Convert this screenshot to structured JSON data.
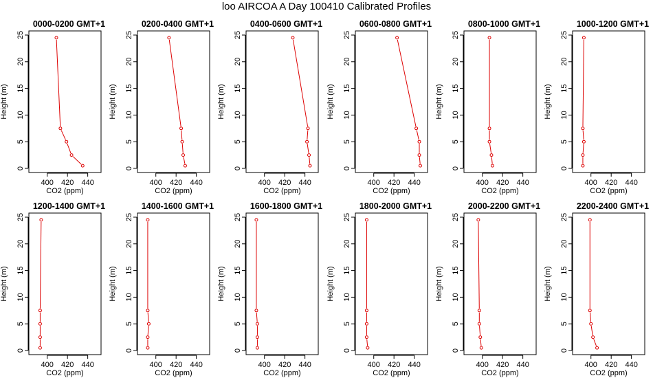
{
  "page_title": "loo AIRCOA A  Day 100410  Calibrated Profiles",
  "colors": {
    "series": "#dd0000",
    "axis": "#000000",
    "background": "#ffffff"
  },
  "chart_data": [
    {
      "type": "line",
      "title": "0000-0200 GMT+1",
      "xlabel": "CO2 (ppm)",
      "ylabel": "Height (m)",
      "xlim": [
        390,
        445
      ],
      "ylim": [
        0,
        25
      ],
      "xticks": [
        400,
        420,
        440
      ],
      "yticks": [
        0,
        5,
        10,
        15,
        20,
        25
      ],
      "series": [
        {
          "x": [
            435,
            424,
            419,
            413,
            409
          ],
          "y": [
            0.5,
            2.5,
            5,
            7.5,
            24.5
          ]
        }
      ]
    },
    {
      "type": "line",
      "title": "0200-0400 GMT+1",
      "xlabel": "CO2 (ppm)",
      "ylabel": "Height (m)",
      "xlim": [
        390,
        445
      ],
      "ylim": [
        0,
        25
      ],
      "xticks": [
        400,
        420,
        440
      ],
      "yticks": [
        0,
        5,
        10,
        15,
        20,
        25
      ],
      "series": [
        {
          "x": [
            429,
            427,
            426,
            425,
            413
          ],
          "y": [
            0.5,
            2.5,
            5,
            7.5,
            24.5
          ]
        }
      ]
    },
    {
      "type": "line",
      "title": "0400-0600 GMT+1",
      "xlabel": "CO2 (ppm)",
      "ylabel": "Height (m)",
      "xlim": [
        390,
        445
      ],
      "ylim": [
        0,
        25
      ],
      "xticks": [
        400,
        420,
        440
      ],
      "yticks": [
        0,
        5,
        10,
        15,
        20,
        25
      ],
      "series": [
        {
          "x": [
            445,
            444,
            442,
            443,
            428
          ],
          "y": [
            0.5,
            2.5,
            5,
            7.5,
            24.5
          ]
        }
      ]
    },
    {
      "type": "line",
      "title": "0600-0800 GMT+1",
      "xlabel": "CO2 (ppm)",
      "ylabel": "Height (m)",
      "xlim": [
        390,
        445
      ],
      "ylim": [
        0,
        25
      ],
      "xticks": [
        400,
        420,
        440
      ],
      "yticks": [
        0,
        5,
        10,
        15,
        20,
        25
      ],
      "series": [
        {
          "x": [
            446,
            445,
            445,
            442,
            423
          ],
          "y": [
            0.5,
            2.5,
            5,
            7.5,
            24.5
          ]
        }
      ]
    },
    {
      "type": "line",
      "title": "0800-1000 GMT+1",
      "xlabel": "CO2 (ppm)",
      "ylabel": "Height (m)",
      "xlim": [
        390,
        445
      ],
      "ylim": [
        0,
        25
      ],
      "xticks": [
        400,
        420,
        440
      ],
      "yticks": [
        0,
        5,
        10,
        15,
        20,
        25
      ],
      "series": [
        {
          "x": [
            410,
            409,
            407,
            407,
            407
          ],
          "y": [
            0.5,
            2.5,
            5,
            7.5,
            24.5
          ]
        }
      ]
    },
    {
      "type": "line",
      "title": "1000-1200 GMT+1",
      "xlabel": "CO2 (ppm)",
      "ylabel": "Height (m)",
      "xlim": [
        390,
        445
      ],
      "ylim": [
        0,
        25
      ],
      "xticks": [
        400,
        420,
        440
      ],
      "yticks": [
        0,
        5,
        10,
        15,
        20,
        25
      ],
      "series": [
        {
          "x": [
            392,
            392,
            393,
            392,
            393
          ],
          "y": [
            0.5,
            2.5,
            5,
            7.5,
            24.5
          ]
        }
      ]
    },
    {
      "type": "line",
      "title": "1200-1400 GMT+1",
      "xlabel": "CO2 (ppm)",
      "ylabel": "Height (m)",
      "xlim": [
        390,
        445
      ],
      "ylim": [
        0,
        25
      ],
      "xticks": [
        400,
        420,
        440
      ],
      "yticks": [
        0,
        5,
        10,
        15,
        20,
        25
      ],
      "series": [
        {
          "x": [
            393,
            393,
            393,
            393,
            394
          ],
          "y": [
            0.5,
            2.5,
            5,
            7.5,
            24.5
          ]
        }
      ]
    },
    {
      "type": "line",
      "title": "1400-1600 GMT+1",
      "xlabel": "CO2 (ppm)",
      "ylabel": "Height (m)",
      "xlim": [
        390,
        445
      ],
      "ylim": [
        0,
        25
      ],
      "xticks": [
        400,
        420,
        440
      ],
      "yticks": [
        0,
        5,
        10,
        15,
        20,
        25
      ],
      "series": [
        {
          "x": [
            392,
            392,
            393,
            392,
            392
          ],
          "y": [
            0.5,
            2.5,
            5,
            7.5,
            24.5
          ]
        }
      ]
    },
    {
      "type": "line",
      "title": "1600-1800 GMT+1",
      "xlabel": "CO2 (ppm)",
      "ylabel": "Height (m)",
      "xlim": [
        390,
        445
      ],
      "ylim": [
        0,
        25
      ],
      "xticks": [
        400,
        420,
        440
      ],
      "yticks": [
        0,
        5,
        10,
        15,
        20,
        25
      ],
      "series": [
        {
          "x": [
            393,
            393,
            393,
            392,
            392
          ],
          "y": [
            0.5,
            2.5,
            5,
            7.5,
            24.5
          ]
        }
      ]
    },
    {
      "type": "line",
      "title": "1800-2000 GMT+1",
      "xlabel": "CO2 (ppm)",
      "ylabel": "Height (m)",
      "xlim": [
        390,
        445
      ],
      "ylim": [
        0,
        25
      ],
      "xticks": [
        400,
        420,
        440
      ],
      "yticks": [
        0,
        5,
        10,
        15,
        20,
        25
      ],
      "series": [
        {
          "x": [
            394,
            393,
            393,
            393,
            393
          ],
          "y": [
            0.5,
            2.5,
            5,
            7.5,
            24.5
          ]
        }
      ]
    },
    {
      "type": "line",
      "title": "2000-2200 GMT+1",
      "xlabel": "CO2 (ppm)",
      "ylabel": "Height (m)",
      "xlim": [
        390,
        445
      ],
      "ylim": [
        0,
        25
      ],
      "xticks": [
        400,
        420,
        440
      ],
      "yticks": [
        0,
        5,
        10,
        15,
        20,
        25
      ],
      "series": [
        {
          "x": [
            399,
            398,
            397,
            397,
            396
          ],
          "y": [
            0.5,
            2.5,
            5,
            7.5,
            24.5
          ]
        }
      ]
    },
    {
      "type": "line",
      "title": "2200-2400 GMT+1",
      "xlabel": "CO2 (ppm)",
      "ylabel": "Height (m)",
      "xlim": [
        390,
        445
      ],
      "ylim": [
        0,
        25
      ],
      "xticks": [
        400,
        420,
        440
      ],
      "yticks": [
        0,
        5,
        10,
        15,
        20,
        25
      ],
      "series": [
        {
          "x": [
            406,
            402,
            400,
            399,
            399
          ],
          "y": [
            0.5,
            2.5,
            5,
            7.5,
            24.5
          ]
        }
      ]
    }
  ]
}
